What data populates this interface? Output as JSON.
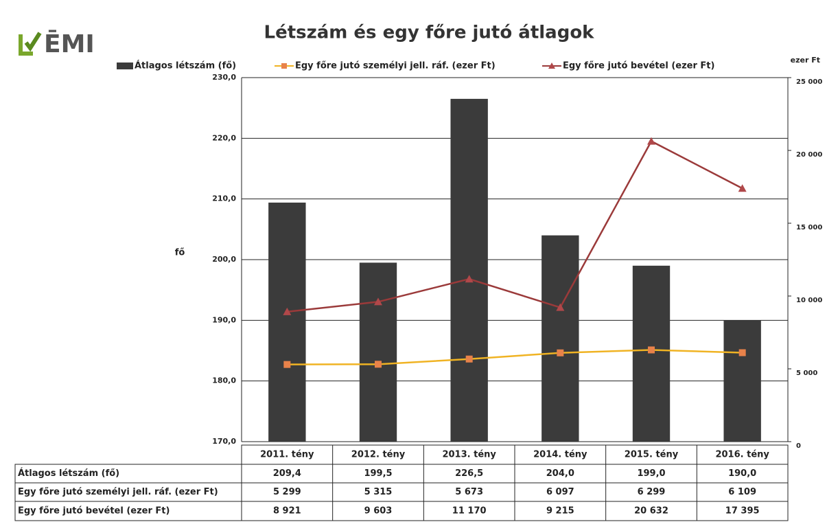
{
  "logo": "ĒMI",
  "chart_data": {
    "type": "bar",
    "title": "Létszám és egy főre jutó átlagok",
    "y_label": "fő",
    "y2_label": "ezer Ft",
    "categories": [
      "2011. tény",
      "2012. tény",
      "2013. tény",
      "2014. tény",
      "2015. tény",
      "2016. tény"
    ],
    "series": [
      {
        "name": "Átlagos létszám (fő)",
        "type": "bar",
        "color": "#3b3b3b",
        "values": [
          209.4,
          199.5,
          226.5,
          204.0,
          199.0,
          190.0
        ],
        "value_labels": [
          "209,4",
          "199,5",
          "226,5",
          "204,0",
          "199,0",
          "190,0"
        ]
      },
      {
        "name": "Egy főre jutó személyi jell. ráf. (ezer Ft)",
        "type": "line",
        "marker": "square",
        "color": "#f0b323",
        "marker_color": "#e8824a",
        "axis": "y2",
        "values": [
          5299,
          5315,
          5673,
          6097,
          6299,
          6109
        ],
        "value_labels": [
          "5 299",
          "5 315",
          "5 673",
          "6 097",
          "6 299",
          "6 109"
        ]
      },
      {
        "name": "Egy főre jutó bevétel (ezer Ft)",
        "type": "line",
        "marker": "triangle",
        "color": "#9b3a3a",
        "marker_color": "#b0484a",
        "axis": "y2",
        "values": [
          8921,
          9603,
          11170,
          9215,
          20632,
          17395
        ],
        "value_labels": [
          "8 921",
          "9 603",
          "11 170",
          "9 215",
          "20 632",
          "17 395"
        ]
      }
    ],
    "ylim": [
      170,
      230
    ],
    "yticks": [
      {
        "value": 170,
        "label": "170,0"
      },
      {
        "value": 180,
        "label": "180,0"
      },
      {
        "value": 190,
        "label": "190,0"
      },
      {
        "value": 200,
        "label": "200,0"
      },
      {
        "value": 210,
        "label": "210,0"
      },
      {
        "value": 220,
        "label": "220,0"
      },
      {
        "value": 230,
        "label": "230,0"
      }
    ],
    "y2lim": [
      0,
      25000
    ],
    "y2ticks": [
      0,
      {
        "value": 5000,
        "label": "5 000"
      },
      {
        "value": 10000,
        "label": "10 000"
      },
      {
        "value": 15000,
        "label": "15 000"
      },
      {
        "value": 20000,
        "label": "20 000"
      },
      {
        "value": 25000,
        "label": "25 000"
      }
    ],
    "grid": true,
    "legend": "top"
  }
}
